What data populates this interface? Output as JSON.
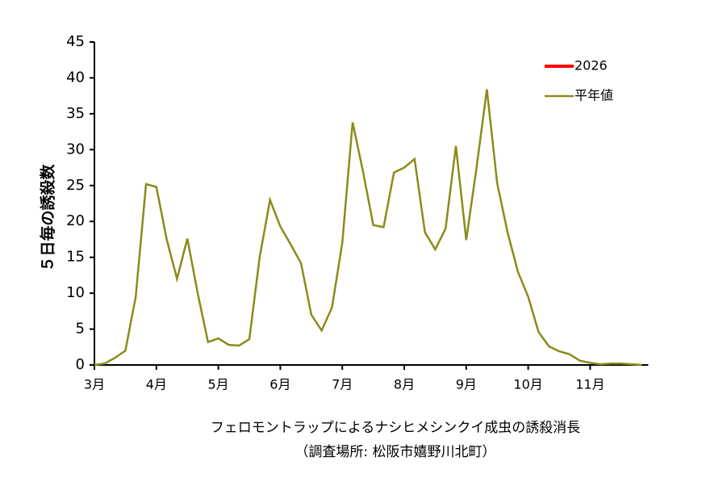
{
  "chart_data": {
    "type": "line",
    "title": "フェロモントラップによるナシヒメシンクイ成虫の誘殺消長",
    "subtitle": "（調査場所: 松阪市嬉野川北町）",
    "y_label": "５日毎の誘殺数",
    "categories": [
      "3月",
      null,
      null,
      null,
      null,
      null,
      "4月",
      null,
      null,
      null,
      null,
      null,
      "5月",
      null,
      null,
      null,
      null,
      null,
      "6月",
      null,
      null,
      null,
      null,
      null,
      "7月",
      null,
      null,
      null,
      null,
      null,
      "8月",
      null,
      null,
      null,
      null,
      null,
      "9月",
      null,
      null,
      null,
      null,
      null,
      "10月",
      null,
      null,
      null,
      null,
      null,
      "11月",
      null,
      null,
      null,
      null,
      null
    ],
    "series": [
      {
        "name": "2026",
        "color": "#ff0000",
        "values": [
          null,
          null,
          null,
          null,
          null,
          null,
          null,
          null,
          null,
          null,
          null,
          null,
          null,
          null,
          null,
          null,
          null,
          null,
          null,
          null,
          null,
          null,
          null,
          null,
          null,
          null,
          null,
          null,
          null,
          null,
          null,
          null,
          null,
          null,
          null,
          null,
          null,
          null,
          null,
          null,
          null,
          null,
          null,
          null,
          null,
          null,
          null,
          null,
          null,
          null,
          null,
          null,
          null,
          null
        ]
      },
      {
        "name": "平年値",
        "color": "#8b8b1a",
        "values": [
          0,
          0.2,
          1,
          2,
          9.5,
          25.2,
          24.8,
          17.5,
          12,
          17.6,
          10,
          3.2,
          3.7,
          2.8,
          2.7,
          3.6,
          15,
          23,
          19.3,
          16.8,
          14.2,
          7,
          4.8,
          8,
          17,
          33.8,
          27,
          19.5,
          19.2,
          26.8,
          27.5,
          28.7,
          18.5,
          16.1,
          19,
          30.5,
          17.4,
          27.5,
          38.4,
          25.3,
          18.5,
          13,
          9.5,
          4.6,
          2.6,
          1.9,
          1.5,
          0.6,
          0.3,
          0.1,
          0.2,
          0.2,
          0.1,
          0
        ]
      }
    ],
    "ylim": [
      0,
      45
    ],
    "yticks": [
      0,
      5,
      10,
      15,
      20,
      25,
      30,
      35,
      40,
      45
    ],
    "grid": false,
    "legend": "upper right"
  }
}
